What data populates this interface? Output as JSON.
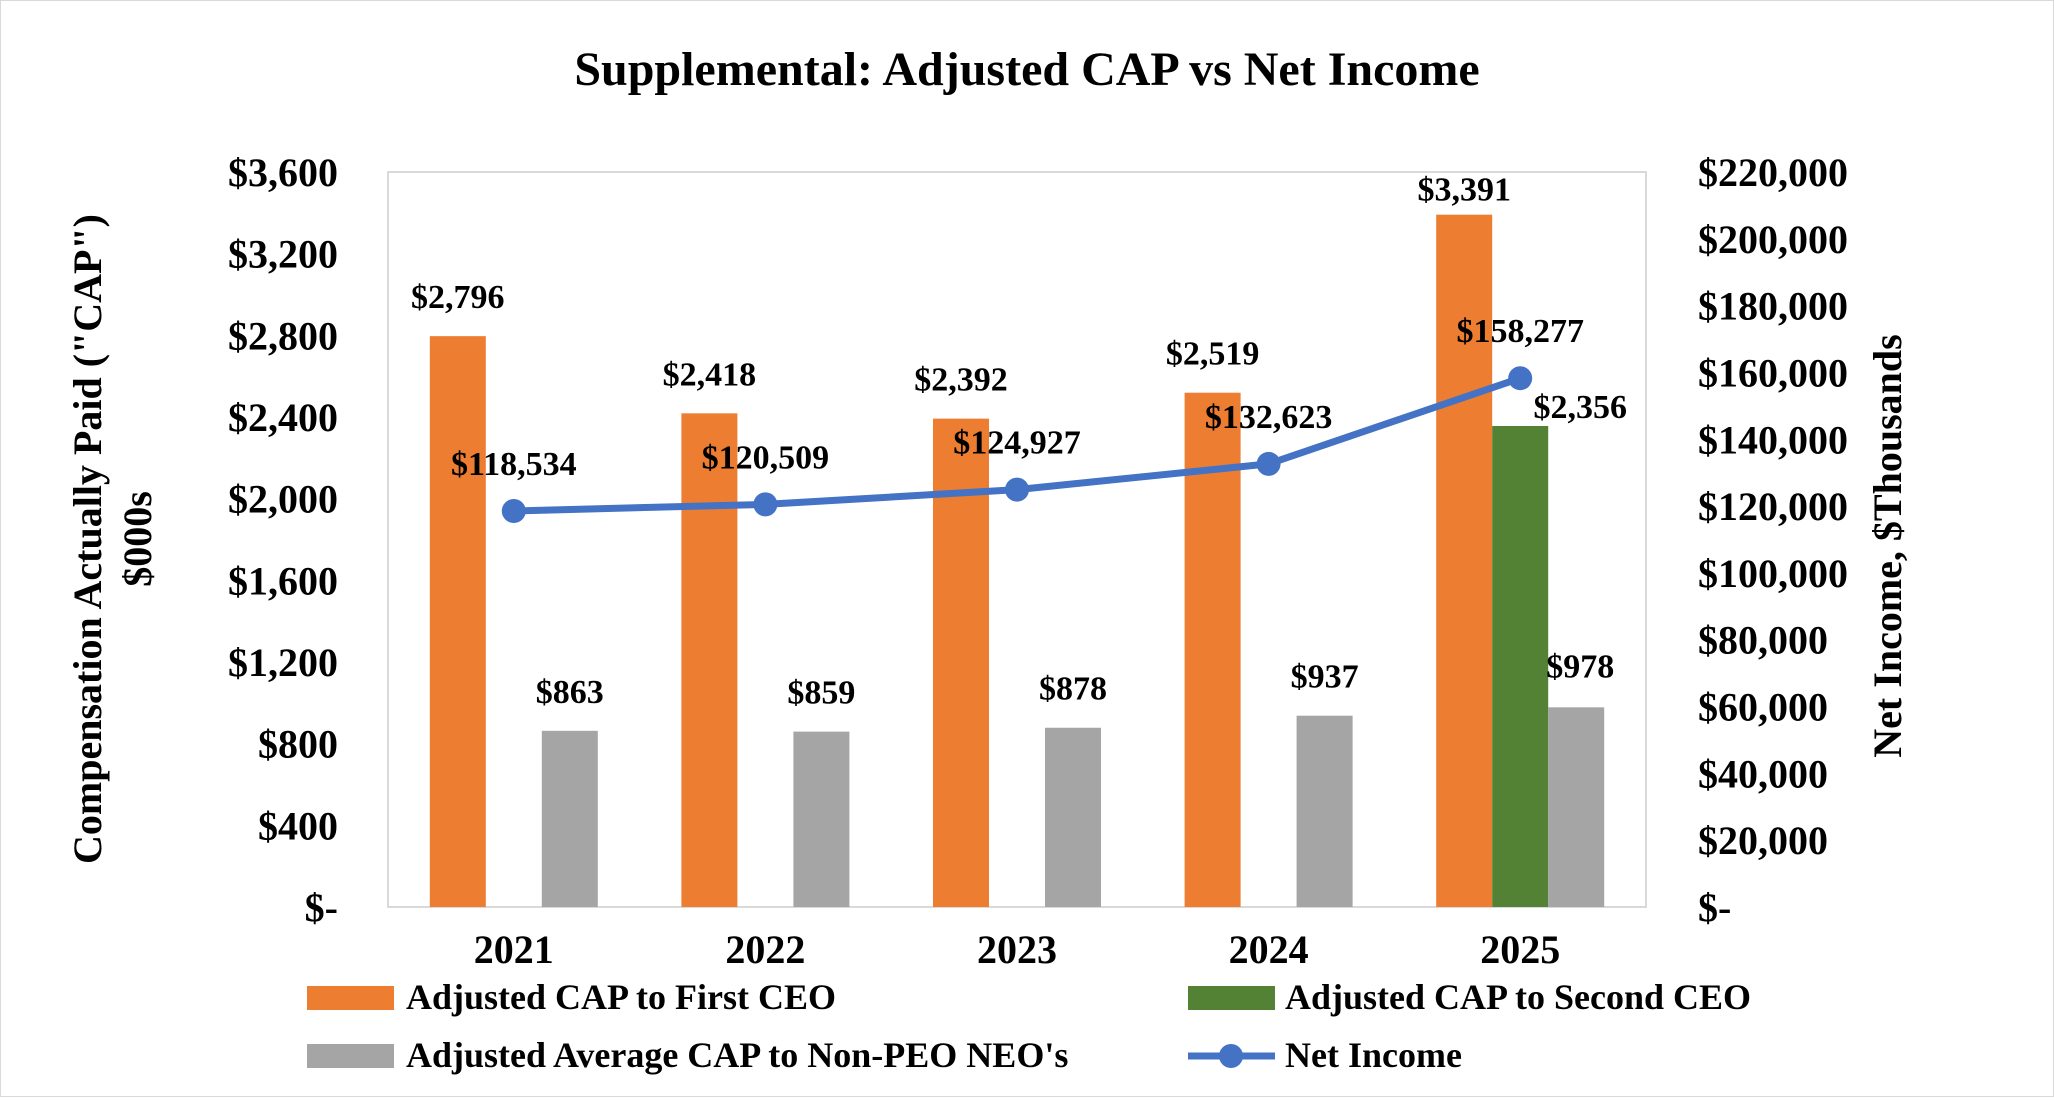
{
  "chart_data": {
    "type": "bar",
    "title": "Supplemental: Adjusted CAP vs Net Income",
    "categories": [
      "2021",
      "2022",
      "2023",
      "2024",
      "2025"
    ],
    "ylabel_left": "Compensation  Actually  Paid (\"CAP\") $000s",
    "ylabel_left_lines": [
      "Compensation  Actually  Paid (\"CAP\")",
      "$000s"
    ],
    "ylabel_right": "Net Income, $Thousands",
    "ylim_left": [
      0,
      3600
    ],
    "ylim_right": [
      0,
      220000
    ],
    "yticks_left": [
      "$-",
      "$400",
      "$800",
      "$1,200",
      "$1,600",
      "$2,000",
      "$2,400",
      "$2,800",
      "$3,200",
      "$3,600"
    ],
    "yticks_right": [
      "$-",
      "$20,000",
      "$40,000",
      "$60,000",
      "$80,000",
      "$100,000",
      "$120,000",
      "$140,000",
      "$160,000",
      "$180,000",
      "$200,000",
      "$220,000"
    ],
    "series": [
      {
        "name": "Adjusted CAP to First CEO",
        "type": "bar",
        "axis": "left",
        "color": "#ED7D31",
        "values": [
          2796,
          2418,
          2392,
          2519,
          3391
        ],
        "labels": [
          "$2,796",
          "$2,418",
          "$2,392",
          "$2,519",
          "$3,391"
        ]
      },
      {
        "name": "Adjusted CAP to Second CEO",
        "type": "bar",
        "axis": "left",
        "color": "#548235",
        "values": [
          null,
          null,
          null,
          null,
          2356
        ],
        "labels": [
          "",
          "",
          "",
          "",
          "$2,356"
        ]
      },
      {
        "name": "Adjusted Average CAP to Non-PEO NEO's",
        "type": "bar",
        "axis": "left",
        "color": "#A5A5A5",
        "values": [
          863,
          859,
          878,
          937,
          978
        ],
        "labels": [
          "$863",
          "$859",
          "$878",
          "$937",
          "$978"
        ]
      },
      {
        "name": "Net Income",
        "type": "line",
        "axis": "right",
        "color": "#4472C4",
        "values": [
          118534,
          120509,
          124927,
          132623,
          158277
        ],
        "labels": [
          "$118,534",
          "$120,509",
          "$124,927",
          "$132,623",
          "$158,277"
        ]
      }
    ],
    "legend": "bottom"
  }
}
